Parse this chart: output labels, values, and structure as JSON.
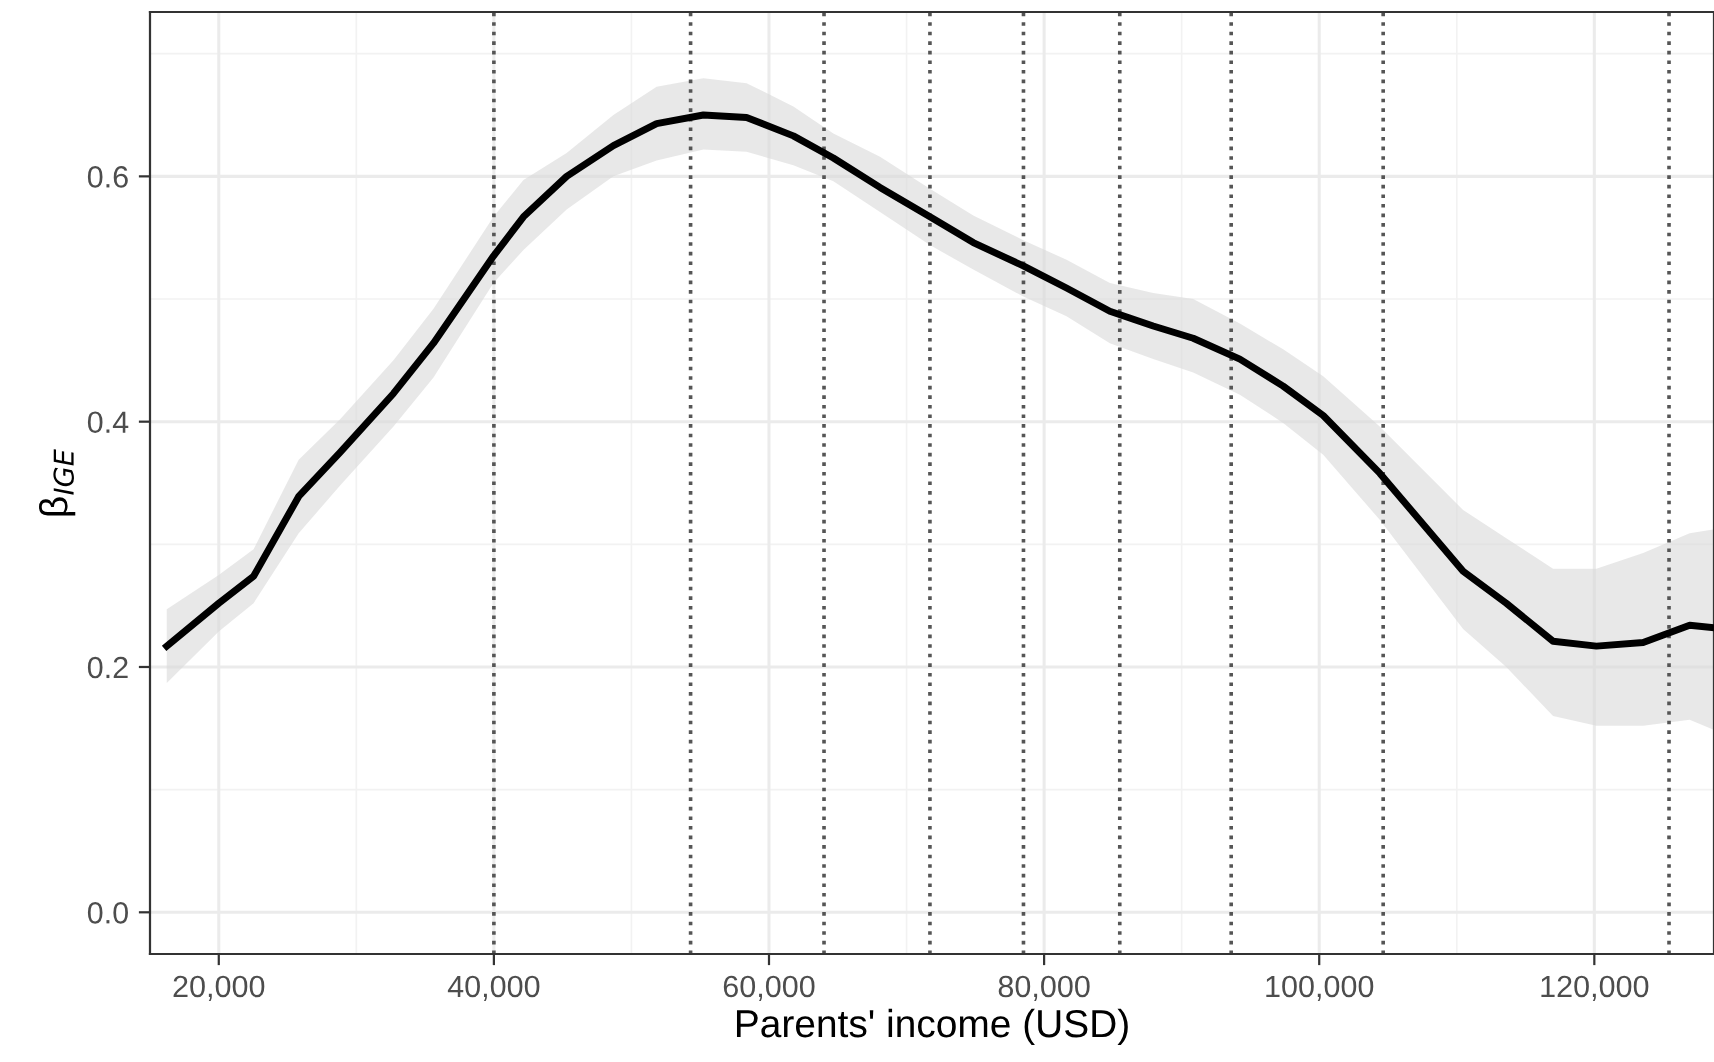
{
  "chart_data": {
    "type": "line",
    "xlabel": "Parents' income (USD)",
    "ylabel": "β$_{IGE}$",
    "series": [
      {
        "color": "#000000",
        "x": [
          16220,
          20000,
          22530,
          25810,
          28820,
          32700,
          35610,
          39970,
          42150,
          45290,
          48690,
          51830,
          55230,
          58370,
          61770,
          64680,
          68070,
          71700,
          74850,
          78490,
          81630,
          84780,
          87930,
          90840,
          94230,
          97380,
          100290,
          104400,
          110460,
          113600,
          117000,
          120150,
          123550,
          126930,
          128630
        ],
        "values": [
          0.217,
          0.252,
          0.274,
          0.339,
          0.375,
          0.423,
          0.464,
          0.535,
          0.567,
          0.6,
          0.625,
          0.643,
          0.65,
          0.648,
          0.633,
          0.615,
          0.591,
          0.567,
          0.546,
          0.527,
          0.509,
          0.49,
          0.478,
          0.468,
          0.451,
          0.429,
          0.405,
          0.358,
          0.278,
          0.252,
          0.221,
          0.217,
          0.22,
          0.234,
          0.232
        ],
        "upper": [
          0.247,
          0.275,
          0.296,
          0.369,
          0.402,
          0.45,
          0.492,
          0.567,
          0.597,
          0.619,
          0.65,
          0.673,
          0.68,
          0.676,
          0.657,
          0.635,
          0.616,
          0.59,
          0.568,
          0.548,
          0.532,
          0.513,
          0.505,
          0.5,
          0.48,
          0.459,
          0.437,
          0.396,
          0.328,
          0.305,
          0.28,
          0.28,
          0.293,
          0.309,
          0.312
        ],
        "lower": [
          0.187,
          0.229,
          0.252,
          0.309,
          0.348,
          0.396,
          0.436,
          0.513,
          0.54,
          0.573,
          0.6,
          0.613,
          0.622,
          0.62,
          0.609,
          0.596,
          0.571,
          0.544,
          0.524,
          0.502,
          0.486,
          0.464,
          0.451,
          0.44,
          0.422,
          0.399,
          0.373,
          0.32,
          0.231,
          0.2,
          0.16,
          0.152,
          0.152,
          0.157,
          0.149
        ]
      }
    ],
    "xlim": [
      15000,
      128700
    ],
    "ylim": [
      -0.034,
      0.734
    ],
    "xticks": [
      {
        "value": 20000,
        "label": "20,000"
      },
      {
        "value": 40000,
        "label": "40,000"
      },
      {
        "value": 60000,
        "label": "60,000"
      },
      {
        "value": 80000,
        "label": "80,000"
      },
      {
        "value": 100000,
        "label": "100,000"
      },
      {
        "value": 120000,
        "label": "120,000"
      }
    ],
    "yticks": [
      {
        "value": 0,
        "label": "0.0"
      },
      0.2,
      0.4,
      0.6
    ],
    "ref_lines": [
      {
        "axis": "x",
        "value": 40000,
        "color": "#555555",
        "line_style": "dotted"
      },
      {
        "axis": "x",
        "value": 54300,
        "color": "#555555",
        "line_style": "dotted"
      },
      {
        "axis": "x",
        "value": 64000,
        "color": "#555555",
        "line_style": "dotted"
      },
      {
        "axis": "x",
        "value": 71700,
        "color": "#555555",
        "line_style": "dotted"
      },
      {
        "axis": "x",
        "value": 78500,
        "color": "#555555",
        "line_style": "dotted"
      },
      {
        "axis": "x",
        "value": 85500,
        "color": "#555555",
        "line_style": "dotted"
      },
      {
        "axis": "x",
        "value": 93600,
        "color": "#555555",
        "line_style": "dotted"
      },
      {
        "axis": "x",
        "value": 104650,
        "color": "#555555",
        "line_style": "dotted"
      },
      {
        "axis": "x",
        "value": 125430,
        "color": "#555555",
        "line_style": "dotted"
      }
    ],
    "grid": true,
    "legend": false,
    "marker": "none",
    "line_style": "solid"
  }
}
